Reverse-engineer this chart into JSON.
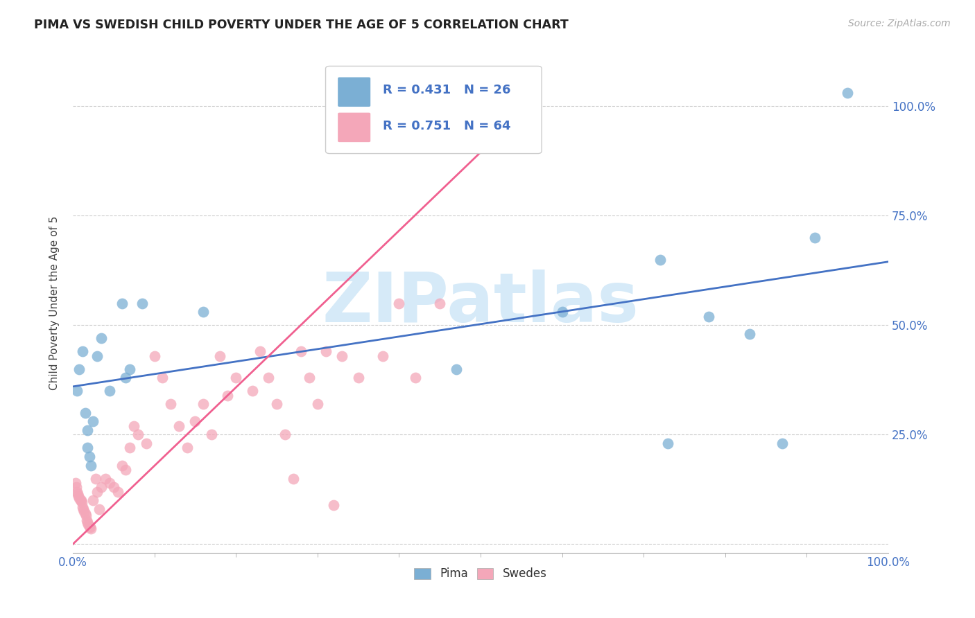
{
  "title": "PIMA VS SWEDISH CHILD POVERTY UNDER THE AGE OF 5 CORRELATION CHART",
  "source": "Source: ZipAtlas.com",
  "ylabel": "Child Poverty Under the Age of 5",
  "xlim": [
    0,
    1
  ],
  "ylim": [
    -0.02,
    1.12
  ],
  "x_ticks_major": [
    0.0,
    1.0
  ],
  "x_tick_labels_major": [
    "0.0%",
    "100.0%"
  ],
  "x_ticks_minor": [
    0.1,
    0.2,
    0.3,
    0.4,
    0.5,
    0.6,
    0.7,
    0.8,
    0.9
  ],
  "y_ticks": [
    0.0,
    0.25,
    0.5,
    0.75,
    1.0
  ],
  "y_tick_labels": [
    "",
    "25.0%",
    "50.0%",
    "75.0%",
    "100.0%"
  ],
  "blue_color": "#7bafd4",
  "pink_color": "#f4a7b9",
  "blue_line_color": "#4472c4",
  "pink_line_color": "#f06090",
  "watermark_color": "#d6eaf8",
  "pima_x": [
    0.005,
    0.008,
    0.012,
    0.015,
    0.018,
    0.018,
    0.02,
    0.022,
    0.025,
    0.03,
    0.035,
    0.045,
    0.06,
    0.065,
    0.07,
    0.085,
    0.16,
    0.47,
    0.6,
    0.72,
    0.73,
    0.78,
    0.83,
    0.87,
    0.91,
    0.95
  ],
  "pima_y": [
    0.35,
    0.4,
    0.44,
    0.3,
    0.26,
    0.22,
    0.2,
    0.18,
    0.28,
    0.43,
    0.47,
    0.35,
    0.55,
    0.38,
    0.4,
    0.55,
    0.53,
    0.4,
    0.53,
    0.65,
    0.23,
    0.52,
    0.48,
    0.23,
    0.7,
    1.03
  ],
  "swede_x": [
    0.003,
    0.004,
    0.005,
    0.006,
    0.007,
    0.008,
    0.009,
    0.01,
    0.011,
    0.012,
    0.013,
    0.014,
    0.015,
    0.016,
    0.017,
    0.018,
    0.019,
    0.02,
    0.021,
    0.022,
    0.025,
    0.028,
    0.03,
    0.032,
    0.035,
    0.04,
    0.045,
    0.05,
    0.055,
    0.06,
    0.065,
    0.07,
    0.075,
    0.08,
    0.09,
    0.1,
    0.11,
    0.12,
    0.13,
    0.14,
    0.15,
    0.16,
    0.17,
    0.18,
    0.19,
    0.2,
    0.22,
    0.23,
    0.24,
    0.25,
    0.26,
    0.27,
    0.28,
    0.29,
    0.3,
    0.31,
    0.32,
    0.33,
    0.35,
    0.38,
    0.4,
    0.42,
    0.45,
    0.5
  ],
  "swede_y": [
    0.14,
    0.13,
    0.12,
    0.115,
    0.11,
    0.105,
    0.1,
    0.1,
    0.095,
    0.085,
    0.08,
    0.075,
    0.07,
    0.065,
    0.055,
    0.05,
    0.045,
    0.04,
    0.038,
    0.035,
    0.1,
    0.15,
    0.12,
    0.08,
    0.13,
    0.15,
    0.14,
    0.13,
    0.12,
    0.18,
    0.17,
    0.22,
    0.27,
    0.25,
    0.23,
    0.43,
    0.38,
    0.32,
    0.27,
    0.22,
    0.28,
    0.32,
    0.25,
    0.43,
    0.34,
    0.38,
    0.35,
    0.44,
    0.38,
    0.32,
    0.25,
    0.15,
    0.44,
    0.38,
    0.32,
    0.44,
    0.09,
    0.43,
    0.38,
    0.43,
    0.55,
    0.38,
    0.55,
    1.02
  ],
  "blue_line_x": [
    0.0,
    1.0
  ],
  "blue_line_y": [
    0.36,
    0.645
  ],
  "pink_line_x": [
    0.0,
    0.57
  ],
  "pink_line_y": [
    0.0,
    1.02
  ],
  "legend_r_blue": "R = 0.431",
  "legend_n_blue": "N = 26",
  "legend_r_pink": "R = 0.751",
  "legend_n_pink": "N = 64"
}
